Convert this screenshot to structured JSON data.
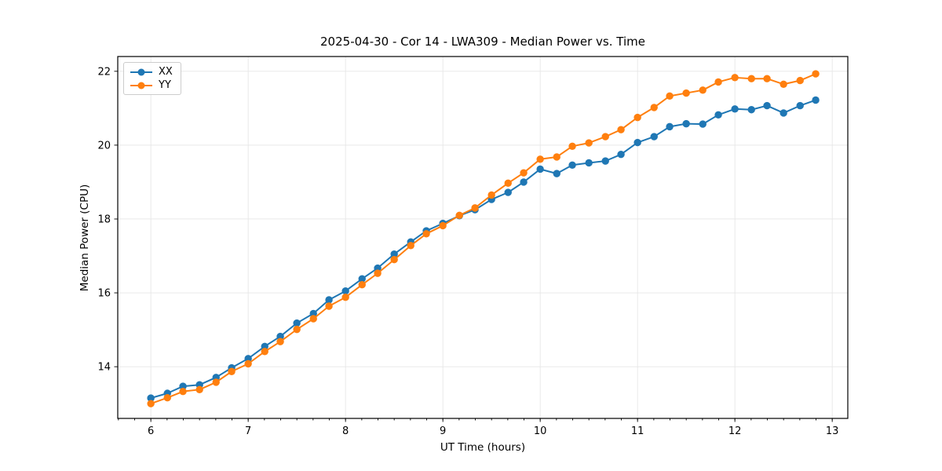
{
  "window": {
    "background": "#ffffff"
  },
  "chart_data": {
    "type": "line",
    "title": "2025-04-30 - Cor 14 - LWA309 - Median Power vs. Time",
    "xlabel": "UT Time (hours)",
    "ylabel": "Median Power (CPU)",
    "xlim": [
      5.66,
      13.16
    ],
    "ylim": [
      12.6,
      22.4
    ],
    "xticks": [
      6,
      7,
      8,
      9,
      10,
      11,
      12,
      13
    ],
    "yticks": [
      14,
      16,
      18,
      20,
      22
    ],
    "minor_xtick_step_hours": 0.16667,
    "grid": true,
    "grid_color": "#e6e6e6",
    "spine_color": "#000000",
    "legend_position": "upper-left",
    "x": [
      6.0,
      6.17,
      6.33,
      6.5,
      6.67,
      6.83,
      7.0,
      7.17,
      7.33,
      7.5,
      7.67,
      7.83,
      8.0,
      8.17,
      8.33,
      8.5,
      8.67,
      8.83,
      9.0,
      9.17,
      9.33,
      9.5,
      9.67,
      9.83,
      10.0,
      10.17,
      10.33,
      10.5,
      10.67,
      10.83,
      11.0,
      11.17,
      11.33,
      11.5,
      11.67,
      11.83,
      12.0,
      12.17,
      12.33,
      12.5,
      12.67,
      12.83
    ],
    "series": [
      {
        "name": "XX",
        "color": "#1f77b4",
        "values": [
          13.15,
          13.28,
          13.47,
          13.51,
          13.71,
          13.97,
          14.22,
          14.55,
          14.82,
          15.18,
          15.44,
          15.81,
          16.05,
          16.38,
          16.67,
          17.05,
          17.38,
          17.68,
          17.88,
          18.09,
          18.25,
          18.53,
          18.72,
          19.0,
          19.35,
          19.23,
          19.46,
          19.52,
          19.57,
          19.75,
          20.07,
          20.23,
          20.5,
          20.58,
          20.57,
          20.82,
          20.98,
          20.96,
          21.07,
          20.87,
          21.07,
          21.22
        ]
      },
      {
        "name": "YY",
        "color": "#ff7f0e",
        "values": [
          13.0,
          13.16,
          13.33,
          13.38,
          13.58,
          13.87,
          14.08,
          14.41,
          14.68,
          15.01,
          15.3,
          15.64,
          15.88,
          16.22,
          16.53,
          16.9,
          17.28,
          17.6,
          17.82,
          18.1,
          18.3,
          18.65,
          18.97,
          19.25,
          19.62,
          19.68,
          19.97,
          20.06,
          20.23,
          20.42,
          20.75,
          21.02,
          21.33,
          21.41,
          21.49,
          21.71,
          21.83,
          21.8,
          21.8,
          21.65,
          21.75,
          21.93
        ]
      }
    ]
  },
  "legend": {
    "items": [
      {
        "label": "XX",
        "color": "#1f77b4"
      },
      {
        "label": "YY",
        "color": "#ff7f0e"
      }
    ]
  }
}
